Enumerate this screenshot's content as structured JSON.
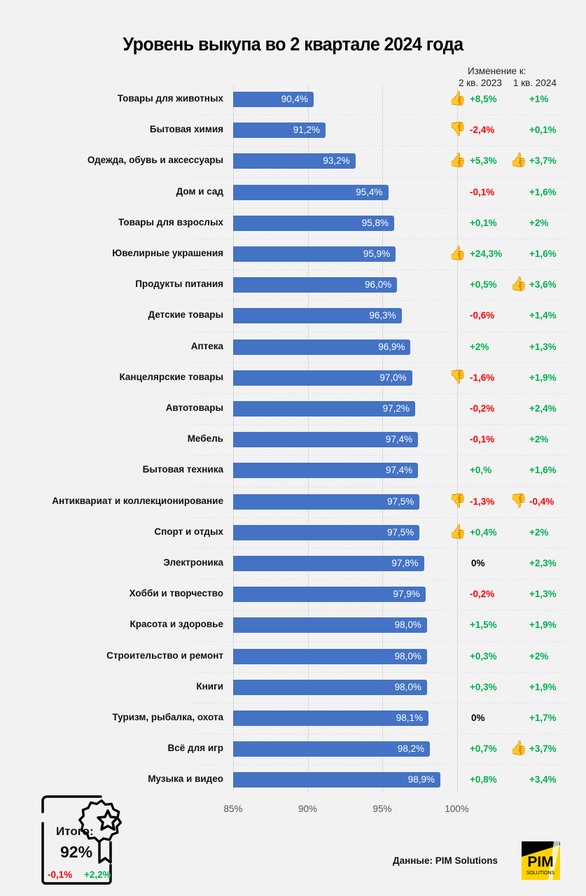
{
  "header": {
    "title": "Уровень выкупа во 2 квартале 2024 года",
    "change_label": "Изменение к:",
    "col1_label": "2 кв. 2023",
    "col2_label": "1 кв. 2024"
  },
  "chart_data": {
    "type": "bar",
    "orientation": "horizontal",
    "title": "Уровень выкупа во 2 квартале 2024 года",
    "xlabel": "",
    "ylabel": "",
    "xlim": [
      85,
      100
    ],
    "x_ticks": [
      "85%",
      "90%",
      "95%",
      "100%"
    ],
    "x_tick_values": [
      85,
      90,
      95,
      100
    ],
    "grid": true,
    "categories": [
      "Товары для животных",
      "Бытовая химия",
      "Одежда, обувь и аксессуары",
      "Дом и сад",
      "Товары для взрослых",
      "Ювелирные украшения",
      "Продукты питания",
      "Детские товары",
      "Аптека",
      "Канцелярские товары",
      "Автотовары",
      "Мебель",
      "Бытовая техника",
      "Антиквариат и коллекционирование",
      "Спорт и отдых",
      "Электроника",
      "Хобби и творчество",
      "Красота и здоровье",
      "Строительство и ремонт",
      "Книги",
      "Туризм, рыбалка, охота",
      "Всё для игр",
      "Музыка и видео"
    ],
    "values": [
      90.4,
      91.2,
      93.2,
      95.4,
      95.8,
      95.9,
      96.0,
      96.3,
      96.9,
      97.0,
      97.2,
      97.4,
      97.4,
      97.5,
      97.5,
      97.8,
      97.9,
      98.0,
      98.0,
      98.0,
      98.1,
      98.2,
      98.9
    ],
    "value_labels": [
      "90,4%",
      "91,2%",
      "93,2%",
      "95,4%",
      "95,8%",
      "95,9%",
      "96,0%",
      "96,3%",
      "96,9%",
      "97,0%",
      "97,2%",
      "97,4%",
      "97,4%",
      "97,5%",
      "97,5%",
      "97,8%",
      "97,9%",
      "98,0%",
      "98,0%",
      "98,0%",
      "98,1%",
      "98,2%",
      "98,9%"
    ],
    "bar_color": "#4472c4",
    "change_vs_q2_2023": [
      "+8,5%",
      "-2,4%",
      "+5,3%",
      "-0,1%",
      "+0,1%",
      "+24,3%",
      "+0,5%",
      "-0,6%",
      "+2%",
      "-1,6%",
      "-0,2%",
      "-0,1%",
      "+0,%",
      "-1,3%",
      "+0,4%",
      "0%",
      "-0,2%",
      "+1,5%",
      "+0,3%",
      "+0,3%",
      "0%",
      "+0,7%",
      "+0,8%"
    ],
    "change_vs_q1_2024": [
      "+1%",
      "+0,1%",
      "+3,7%",
      "+1,6%",
      "+2%",
      "+1,6%",
      "+3,6%",
      "+1,4%",
      "+1,3%",
      "+1,9%",
      "+2,4%",
      "+2%",
      "+1,6%",
      "-0,4%",
      "+2%",
      "+2,3%",
      "+1,3%",
      "+1,9%",
      "+2%",
      "+1,9%",
      "+1,7%",
      "+3,7%",
      "+3,4%"
    ],
    "icons_q2_2023": [
      "thumbs-up",
      "thumbs-down",
      "thumbs-up",
      "",
      "",
      "thumbs-up",
      "",
      "",
      "",
      "thumbs-down",
      "",
      "",
      "",
      "thumbs-down",
      "thumbs-up",
      "",
      "",
      "",
      "",
      "",
      "",
      "",
      ""
    ],
    "icons_q1_2024": [
      "",
      "",
      "thumbs-up",
      "",
      "",
      "",
      "thumbs-up",
      "",
      "",
      "",
      "",
      "",
      "",
      "thumbs-down",
      "",
      "",
      "",
      "",
      "",
      "",
      "",
      "thumbs-up",
      ""
    ]
  },
  "colors": {
    "positive": "#00b050",
    "negative": "#ff0000",
    "neutral": "#000000"
  },
  "summary": {
    "label": "Итого:",
    "value": "92%",
    "change_q2_2023": "-0,1%",
    "change_q1_2024": "+2,2%",
    "icon": "award-certificate-icon"
  },
  "footer": {
    "source": "Данные: PIM Solutions",
    "logo_text_main": "PIM",
    "logo_text_sub": "SOLUTIONS"
  }
}
